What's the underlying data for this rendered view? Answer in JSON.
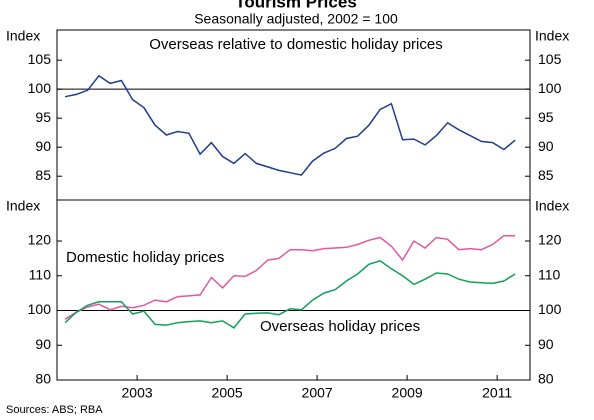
{
  "title": "Tourism Prices",
  "subtitle": "Seasonally adjusted, 2002 = 100",
  "source": "Sources: ABS; RBA",
  "chart_data": [
    {
      "type": "line",
      "y_label": "Index",
      "xlim": [
        2001.72,
        2012.23
      ],
      "ylim": [
        80.9,
        110.2
      ],
      "yticks": [
        85,
        90,
        95,
        100,
        105
      ],
      "hline": 100,
      "x": [
        2001.9,
        2002.15,
        2002.4,
        2002.65,
        2002.9,
        2003.15,
        2003.4,
        2003.65,
        2003.9,
        2004.15,
        2004.4,
        2004.65,
        2004.9,
        2005.15,
        2005.4,
        2005.65,
        2005.9,
        2006.15,
        2006.4,
        2006.65,
        2006.9,
        2007.15,
        2007.4,
        2007.65,
        2007.9,
        2008.15,
        2008.4,
        2008.65,
        2008.9,
        2009.15,
        2009.4,
        2009.65,
        2009.9,
        2010.15,
        2010.4,
        2010.65,
        2010.9,
        2011.15,
        2011.4,
        2011.65,
        2011.9
      ],
      "series": [
        {
          "name": "Overseas relative to domestic holiday prices",
          "color": "#1f3d8f",
          "values": [
            98.7,
            99.1,
            99.8,
            102.3,
            101,
            101.5,
            98.2,
            96.8,
            93.8,
            92.1,
            92.7,
            92.4,
            88.8,
            90.8,
            88.4,
            87.2,
            88.9,
            87.2,
            86.6,
            86,
            85.6,
            85.2,
            87.6,
            89,
            89.8,
            91.5,
            91.9,
            93.8,
            96.5,
            97.5,
            91.3,
            91.4,
            90.4,
            92,
            94.2,
            93,
            92,
            91,
            90.8,
            89.6,
            91.2
          ]
        }
      ]
    },
    {
      "type": "line",
      "y_label": "Index",
      "xlim": [
        2001.72,
        2012.23
      ],
      "ylim": [
        80,
        131.8
      ],
      "yticks": [
        80,
        90,
        100,
        110,
        120
      ],
      "hline": 100,
      "xticks": [
        {
          "value": 2003.5,
          "label": "2003"
        },
        {
          "value": 2005.5,
          "label": "2005"
        },
        {
          "value": 2007.5,
          "label": "2007"
        },
        {
          "value": 2009.5,
          "label": "2009"
        },
        {
          "value": 2011.5,
          "label": "2011"
        }
      ],
      "x": [
        2001.9,
        2002.15,
        2002.4,
        2002.65,
        2002.9,
        2003.15,
        2003.4,
        2003.65,
        2003.9,
        2004.15,
        2004.4,
        2004.65,
        2004.9,
        2005.15,
        2005.4,
        2005.65,
        2005.9,
        2006.15,
        2006.4,
        2006.65,
        2006.9,
        2007.15,
        2007.4,
        2007.65,
        2007.9,
        2008.15,
        2008.4,
        2008.65,
        2008.9,
        2009.15,
        2009.4,
        2009.65,
        2009.9,
        2010.15,
        2010.4,
        2010.65,
        2010.9,
        2011.15,
        2011.4,
        2011.65,
        2011.9
      ],
      "series": [
        {
          "name": "Domestic holiday prices",
          "color": "#e2589e",
          "values": [
            97.5,
            99.5,
            101,
            101.8,
            100.2,
            101.2,
            100.8,
            101.5,
            103,
            102.5,
            104,
            104.2,
            104.5,
            109.5,
            106.5,
            110,
            109.8,
            111.5,
            114.5,
            115,
            117.5,
            117.5,
            117.2,
            117.8,
            118,
            118.2,
            119,
            120.2,
            121,
            118.5,
            114.5,
            120,
            118,
            121,
            120.5,
            117.5,
            117.8,
            117.5,
            119,
            121.5,
            121.5
          ]
        },
        {
          "name": "Overseas holiday prices",
          "color": "#12a05a",
          "values": [
            96.5,
            99.5,
            101.5,
            102.5,
            102.5,
            102.5,
            99,
            99.8,
            96,
            95.8,
            96.5,
            96.8,
            97,
            96.5,
            97,
            95,
            99,
            99.2,
            99.3,
            98.8,
            100.5,
            100.2,
            103,
            105,
            106,
            108.5,
            110.5,
            113.3,
            114.3,
            112,
            110,
            107.5,
            109,
            110.8,
            110.5,
            109,
            108.2,
            108,
            107.8,
            108.5,
            110.5
          ]
        }
      ]
    }
  ]
}
